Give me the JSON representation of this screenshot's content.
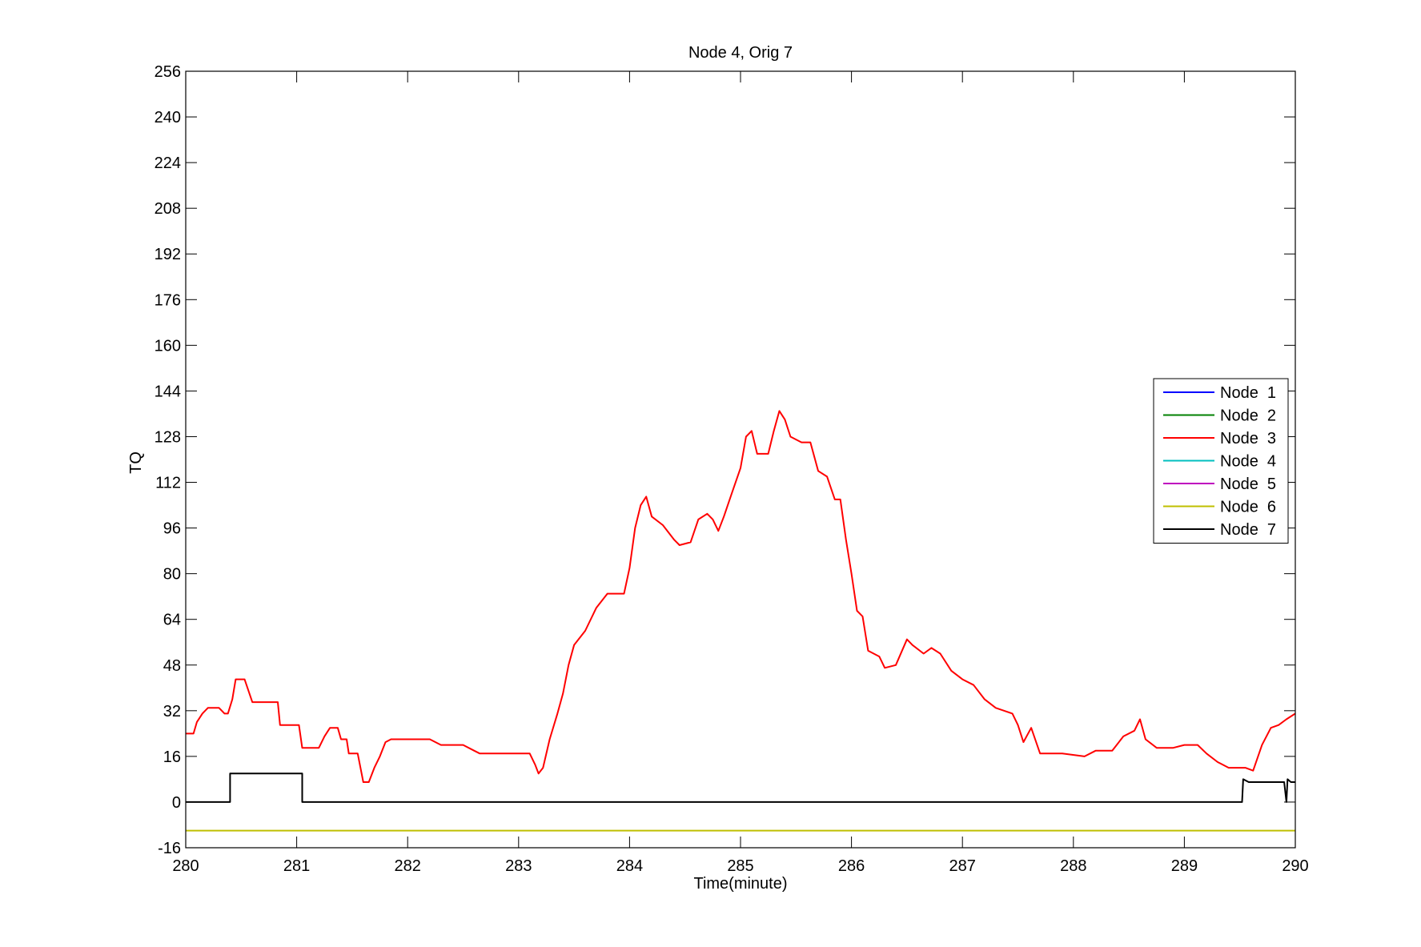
{
  "chart_data": {
    "type": "line",
    "title": "Node 4, Orig 7",
    "xlabel": "Time(minute)",
    "ylabel": "TQ",
    "xlim": [
      280,
      290
    ],
    "ylim": [
      -16,
      256
    ],
    "x_ticks": [
      280,
      281,
      282,
      283,
      284,
      285,
      286,
      287,
      288,
      289,
      290
    ],
    "y_ticks": [
      -16,
      0,
      16,
      32,
      48,
      64,
      80,
      96,
      112,
      128,
      144,
      160,
      176,
      192,
      208,
      224,
      240,
      256
    ],
    "grid": false,
    "legend_position": "right",
    "series": [
      {
        "name": "Node  1",
        "color": "#0000ff",
        "points": []
      },
      {
        "name": "Node  2",
        "color": "#008000",
        "points": []
      },
      {
        "name": "Node  3",
        "color": "#ff0000",
        "points": [
          [
            280.0,
            24
          ],
          [
            280.07,
            24
          ],
          [
            280.1,
            28
          ],
          [
            280.15,
            31
          ],
          [
            280.2,
            33
          ],
          [
            280.3,
            33
          ],
          [
            280.35,
            31
          ],
          [
            280.38,
            31
          ],
          [
            280.42,
            36
          ],
          [
            280.45,
            43
          ],
          [
            280.53,
            43
          ],
          [
            280.6,
            35
          ],
          [
            280.83,
            35
          ],
          [
            280.85,
            27
          ],
          [
            281.02,
            27
          ],
          [
            281.05,
            19
          ],
          [
            281.2,
            19
          ],
          [
            281.25,
            23
          ],
          [
            281.3,
            26
          ],
          [
            281.37,
            26
          ],
          [
            281.4,
            22
          ],
          [
            281.45,
            22
          ],
          [
            281.47,
            17
          ],
          [
            281.55,
            17
          ],
          [
            281.6,
            7
          ],
          [
            281.65,
            7
          ],
          [
            281.7,
            12
          ],
          [
            281.75,
            16
          ],
          [
            281.8,
            21
          ],
          [
            281.85,
            22
          ],
          [
            281.9,
            22
          ],
          [
            282.2,
            22
          ],
          [
            282.3,
            20
          ],
          [
            282.5,
            20
          ],
          [
            282.6,
            18
          ],
          [
            282.65,
            17
          ],
          [
            283.1,
            17
          ],
          [
            283.15,
            13
          ],
          [
            283.18,
            10
          ],
          [
            283.22,
            12
          ],
          [
            283.28,
            22
          ],
          [
            283.35,
            31
          ],
          [
            283.4,
            38
          ],
          [
            283.45,
            48
          ],
          [
            283.5,
            55
          ],
          [
            283.6,
            60
          ],
          [
            283.7,
            68
          ],
          [
            283.8,
            73
          ],
          [
            283.95,
            73
          ],
          [
            284.0,
            82
          ],
          [
            284.05,
            96
          ],
          [
            284.1,
            104
          ],
          [
            284.15,
            107
          ],
          [
            284.2,
            100
          ],
          [
            284.3,
            97
          ],
          [
            284.4,
            92
          ],
          [
            284.45,
            90
          ],
          [
            284.55,
            91
          ],
          [
            284.62,
            99
          ],
          [
            284.7,
            101
          ],
          [
            284.75,
            99
          ],
          [
            284.8,
            95
          ],
          [
            284.85,
            100
          ],
          [
            284.92,
            108
          ],
          [
            285.0,
            117
          ],
          [
            285.05,
            128
          ],
          [
            285.1,
            130
          ],
          [
            285.15,
            122
          ],
          [
            285.25,
            122
          ],
          [
            285.3,
            130
          ],
          [
            285.35,
            137
          ],
          [
            285.4,
            134
          ],
          [
            285.45,
            128
          ],
          [
            285.55,
            126
          ],
          [
            285.63,
            126
          ],
          [
            285.7,
            116
          ],
          [
            285.78,
            114
          ],
          [
            285.85,
            106
          ],
          [
            285.9,
            106
          ],
          [
            285.95,
            92
          ],
          [
            286.0,
            80
          ],
          [
            286.05,
            67
          ],
          [
            286.1,
            65
          ],
          [
            286.15,
            53
          ],
          [
            286.25,
            51
          ],
          [
            286.3,
            47
          ],
          [
            286.4,
            48
          ],
          [
            286.5,
            57
          ],
          [
            286.55,
            55
          ],
          [
            286.65,
            52
          ],
          [
            286.72,
            54
          ],
          [
            286.8,
            52
          ],
          [
            286.9,
            46
          ],
          [
            287.0,
            43
          ],
          [
            287.1,
            41
          ],
          [
            287.2,
            36
          ],
          [
            287.3,
            33
          ],
          [
            287.45,
            31
          ],
          [
            287.5,
            27
          ],
          [
            287.55,
            21
          ],
          [
            287.62,
            26
          ],
          [
            287.7,
            17
          ],
          [
            287.9,
            17
          ],
          [
            288.1,
            16
          ],
          [
            288.2,
            18
          ],
          [
            288.35,
            18
          ],
          [
            288.45,
            23
          ],
          [
            288.55,
            25
          ],
          [
            288.6,
            29
          ],
          [
            288.65,
            22
          ],
          [
            288.75,
            19
          ],
          [
            288.9,
            19
          ],
          [
            289.0,
            20
          ],
          [
            289.12,
            20
          ],
          [
            289.2,
            17
          ],
          [
            289.3,
            14
          ],
          [
            289.4,
            12
          ],
          [
            289.55,
            12
          ],
          [
            289.62,
            11
          ],
          [
            289.7,
            20
          ],
          [
            289.78,
            26
          ],
          [
            289.85,
            27
          ],
          [
            289.92,
            29
          ],
          [
            290.0,
            31
          ]
        ]
      },
      {
        "name": "Node  4",
        "color": "#00bfbf",
        "points": []
      },
      {
        "name": "Node  5",
        "color": "#bf00bf",
        "points": []
      },
      {
        "name": "Node  6",
        "color": "#bfbf00",
        "points": [
          [
            280.0,
            -10
          ],
          [
            290.0,
            -10
          ]
        ]
      },
      {
        "name": "Node  7",
        "color": "#000000",
        "points": [
          [
            280.0,
            0
          ],
          [
            280.4,
            0
          ],
          [
            280.4,
            10
          ],
          [
            281.05,
            10
          ],
          [
            281.05,
            0
          ],
          [
            289.52,
            0
          ],
          [
            289.53,
            8
          ],
          [
            289.58,
            7
          ],
          [
            289.9,
            7
          ],
          [
            289.92,
            0
          ],
          [
            289.93,
            8
          ],
          [
            289.96,
            7
          ],
          [
            290.0,
            7
          ]
        ]
      }
    ]
  }
}
